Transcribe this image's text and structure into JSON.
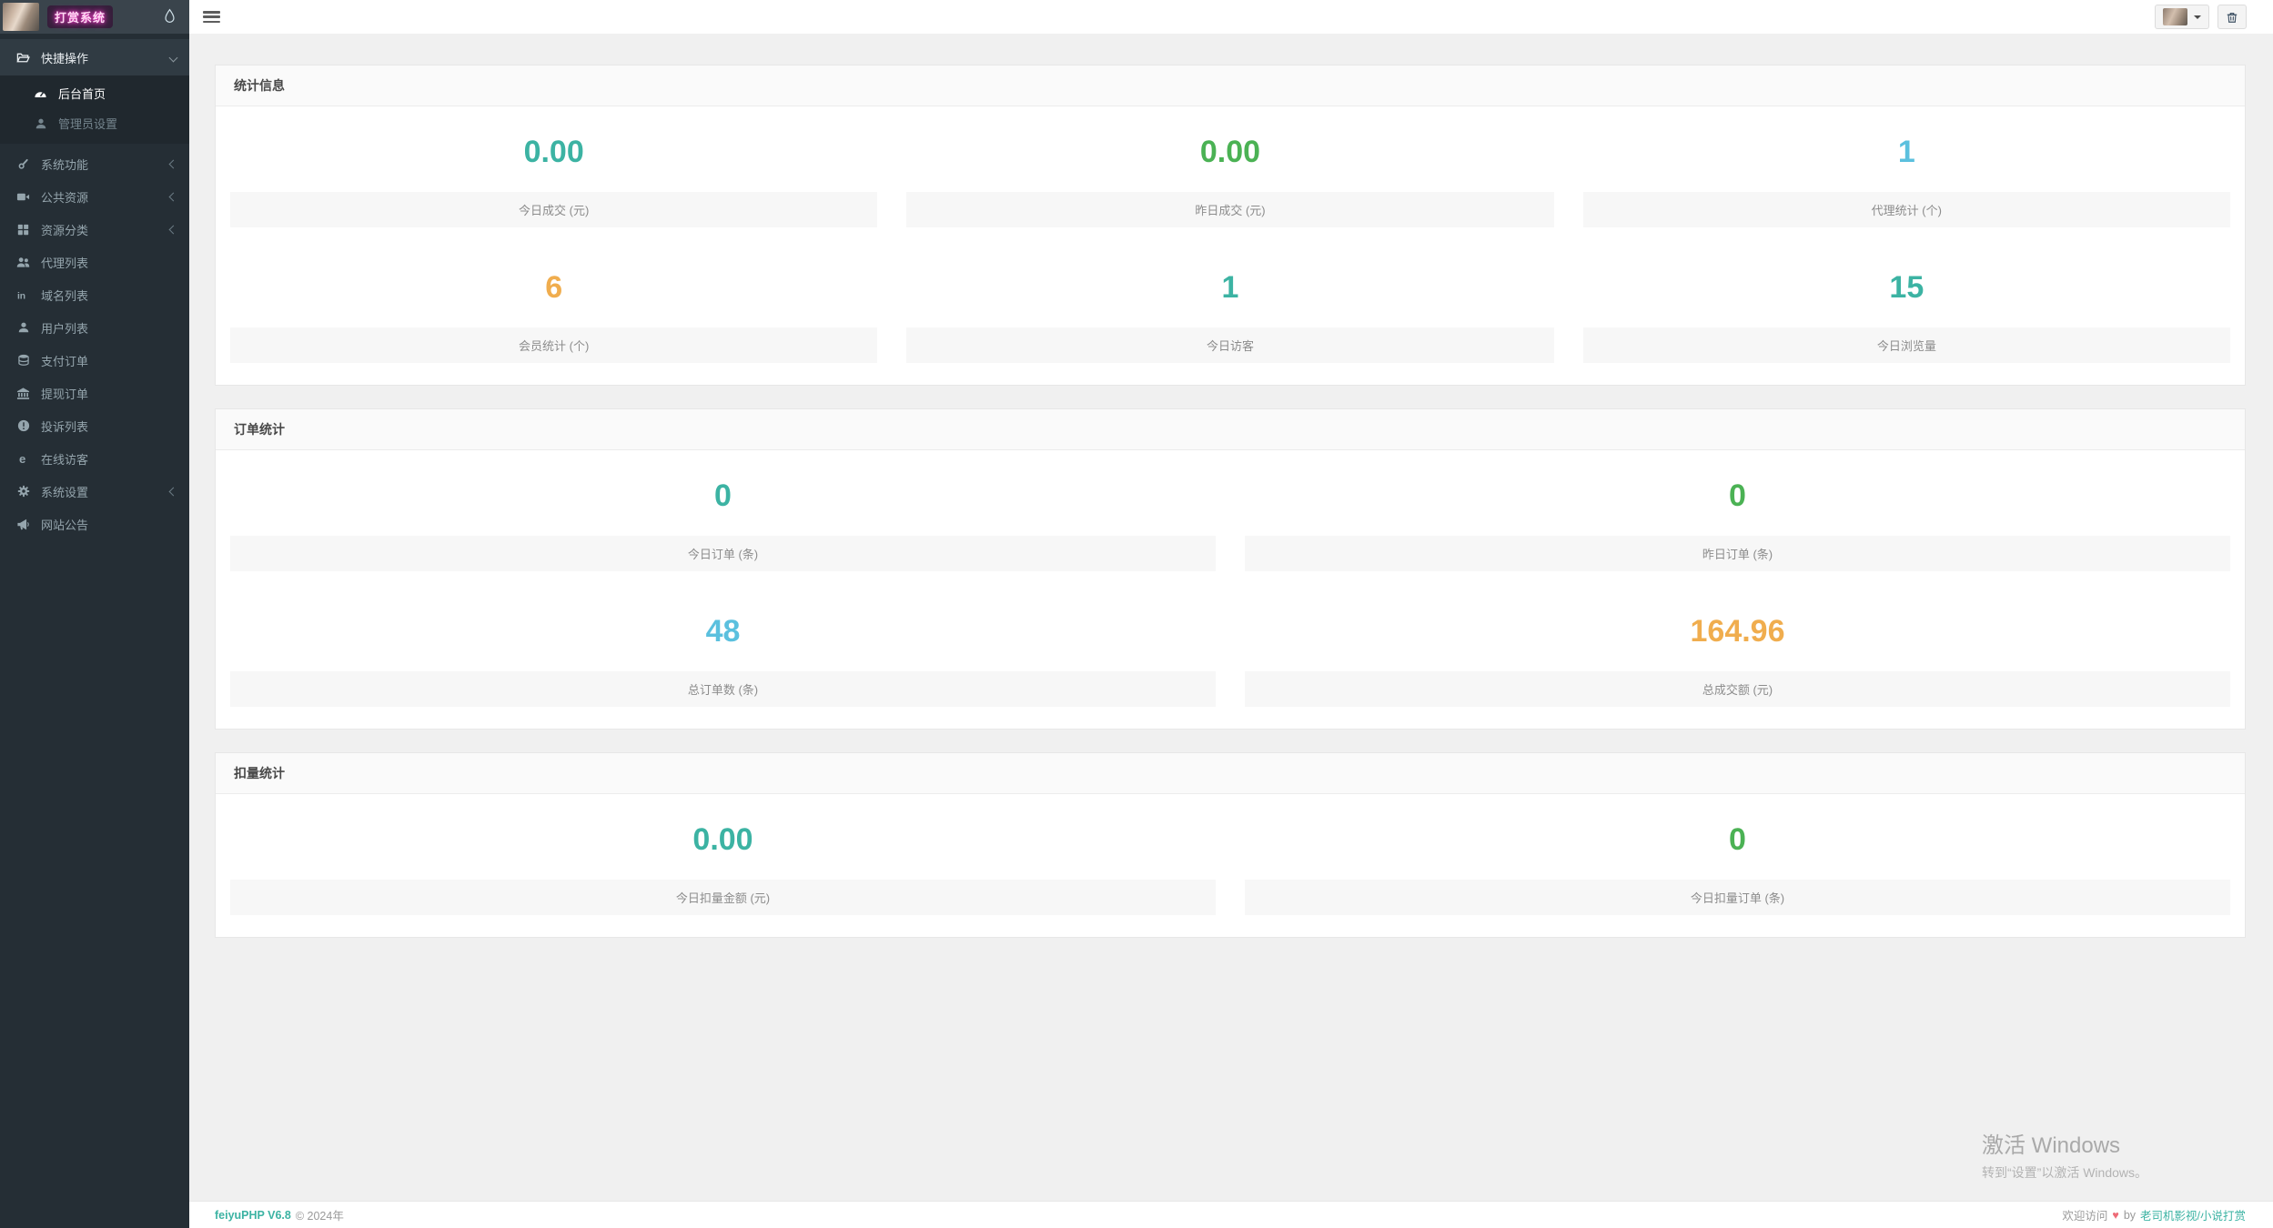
{
  "brand": {
    "title": "打赏系统"
  },
  "sidebar": {
    "items": [
      {
        "id": "quick-actions",
        "label": "快捷操作",
        "icon": "folder-open-icon",
        "open": true,
        "collapsible": true,
        "children": [
          {
            "id": "admin-home",
            "label": "后台首页",
            "icon": "dashboard-icon",
            "active": true
          },
          {
            "id": "admin-settings",
            "label": "管理员设置",
            "icon": "user-icon",
            "active": false
          }
        ]
      },
      {
        "id": "system-functions",
        "label": "系统功能",
        "icon": "wrench-icon",
        "collapsible": true
      },
      {
        "id": "public-resources",
        "label": "公共资源",
        "icon": "video-icon",
        "collapsible": true
      },
      {
        "id": "resource-categories",
        "label": "资源分类",
        "icon": "grid-icon",
        "collapsible": true
      },
      {
        "id": "agent-list",
        "label": "代理列表",
        "icon": "users-icon"
      },
      {
        "id": "domain-list",
        "label": "域名列表",
        "icon": "linkedin-icon"
      },
      {
        "id": "user-list",
        "label": "用户列表",
        "icon": "user-icon"
      },
      {
        "id": "payment-orders",
        "label": "支付订单",
        "icon": "database-icon"
      },
      {
        "id": "withdrawal-orders",
        "label": "提现订单",
        "icon": "bank-icon"
      },
      {
        "id": "complaint-list",
        "label": "投诉列表",
        "icon": "alert-circle-icon"
      },
      {
        "id": "online-visitors",
        "label": "在线访客",
        "icon": "browser-e-icon"
      },
      {
        "id": "system-settings",
        "label": "系统设置",
        "icon": "gear-icon",
        "collapsible": true
      },
      {
        "id": "site-announcement",
        "label": "网站公告",
        "icon": "megaphone-icon"
      }
    ]
  },
  "panels": [
    {
      "id": "stats-info",
      "title": "统计信息",
      "cols": 3,
      "stats": [
        {
          "id": "today-sales",
          "value": "0.00",
          "label": "今日成交 (元)",
          "color": "teal"
        },
        {
          "id": "yesterday-sales",
          "value": "0.00",
          "label": "昨日成交 (元)",
          "color": "green"
        },
        {
          "id": "agent-count",
          "value": "1",
          "label": "代理统计 (个)",
          "color": "blue"
        },
        {
          "id": "member-count",
          "value": "6",
          "label": "会员统计 (个)",
          "color": "orange"
        },
        {
          "id": "today-visitors",
          "value": "1",
          "label": "今日访客",
          "color": "teal"
        },
        {
          "id": "today-pageviews",
          "value": "15",
          "label": "今日浏览量",
          "color": "teal"
        }
      ]
    },
    {
      "id": "order-stats",
      "title": "订单统计",
      "cols": 2,
      "stats": [
        {
          "id": "today-orders",
          "value": "0",
          "label": "今日订单 (条)",
          "color": "teal"
        },
        {
          "id": "yesterday-orders",
          "value": "0",
          "label": "昨日订单 (条)",
          "color": "green"
        },
        {
          "id": "total-orders",
          "value": "48",
          "label": "总订单数 (条)",
          "color": "blue"
        },
        {
          "id": "total-sales",
          "value": "164.96",
          "label": "总成交额 (元)",
          "color": "orange"
        }
      ]
    },
    {
      "id": "deduction-stats",
      "title": "扣量统计",
      "cols": 2,
      "stats": [
        {
          "id": "today-deduct-amount",
          "value": "0.00",
          "label": "今日扣量金额 (元)",
          "color": "teal"
        },
        {
          "id": "today-deduct-orders",
          "value": "0",
          "label": "今日扣量订单 (条)",
          "color": "green"
        }
      ]
    }
  ],
  "watermark": {
    "line1": "激活 Windows",
    "line2": "转到“设置”以激活 Windows。"
  },
  "footer": {
    "app_name": "feiyuPHP V6.8",
    "copyright": "© 2024年",
    "welcome": "欢迎访问",
    "heart": "♥",
    "by": "by",
    "link": "老司机影视/小说打赏"
  },
  "colors": {
    "teal": "#3cb3a3",
    "green": "#4bb254",
    "blue": "#5bc0de",
    "orange": "#f0ad4e",
    "sidebar_bg": "#252e35",
    "brand_pink": "#ff3bce",
    "heart_red": "#ee6b77"
  }
}
